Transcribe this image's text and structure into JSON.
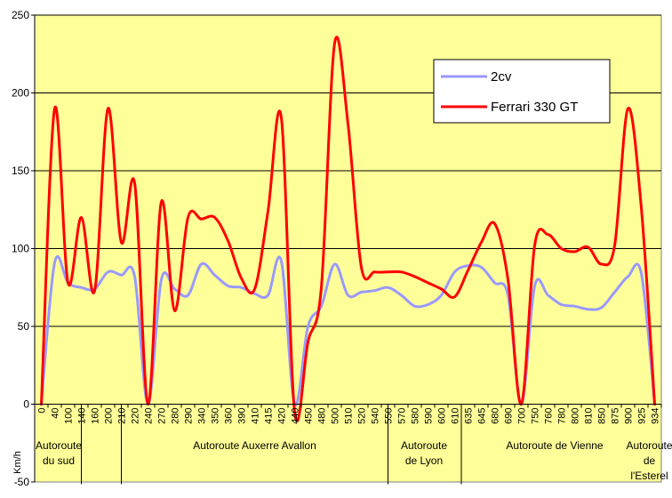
{
  "chart_data": {
    "type": "line",
    "title": "",
    "ylabel": "Km/h",
    "xlabel": "",
    "ylim": [
      -50,
      250
    ],
    "y_ticks": [
      "-50",
      "0",
      "50",
      "100",
      "150",
      "200",
      "250"
    ],
    "grid": "horizontal major lines at 50, 100, 150, 200, 250",
    "legend_position": "top-right",
    "colors": {
      "plot_background": "#FFFF99",
      "gridline": "#000000",
      "frame": "#808080",
      "two_cv": "#9999FF",
      "ferrari": "#FF0000"
    },
    "x": [
      "0",
      "40",
      "100",
      "140",
      "160",
      "200",
      "210",
      "220",
      "240",
      "270",
      "280",
      "290",
      "340",
      "350",
      "360",
      "390",
      "410",
      "415",
      "420",
      "440",
      "450",
      "480",
      "500",
      "510",
      "520",
      "540",
      "550",
      "570",
      "580",
      "590",
      "600",
      "610",
      "635",
      "645",
      "680",
      "690",
      "700",
      "750",
      "760",
      "780",
      "800",
      "810",
      "850",
      "875",
      "900",
      "925",
      "934"
    ],
    "series": [
      {
        "name": "2cv",
        "values": [
          0,
          91,
          78,
          75,
          74,
          85,
          83,
          82,
          0,
          80,
          74,
          70,
          90,
          83,
          76,
          75,
          71,
          70,
          92,
          0,
          50,
          63,
          90,
          70,
          72,
          73,
          75,
          70,
          63,
          64,
          70,
          85,
          89,
          88,
          78,
          70,
          0,
          76,
          70,
          64,
          63,
          61,
          62,
          72,
          82,
          84,
          0
        ]
      },
      {
        "name": "Ferrari 330 GT",
        "values": [
          0,
          190,
          78,
          120,
          73,
          190,
          104,
          142,
          0,
          130,
          60,
          120,
          119,
          120,
          105,
          81,
          74,
          124,
          184,
          -5,
          40,
          75,
          232,
          180,
          88,
          85,
          85,
          85,
          82,
          78,
          74,
          69,
          86,
          104,
          116,
          80,
          0,
          102,
          109,
          100,
          98,
          101,
          90,
          102,
          190,
          126,
          0
        ]
      }
    ],
    "sections": [
      {
        "label": "Autoroute\ndu sud"
      },
      {
        "label": "Autoroute Auxerre Avallon"
      },
      {
        "label": "Autoroute\nde Lyon"
      },
      {
        "label": "Autoroute de Vienne"
      },
      {
        "label": "Autoroute\nde\nl'Esterel"
      }
    ]
  }
}
